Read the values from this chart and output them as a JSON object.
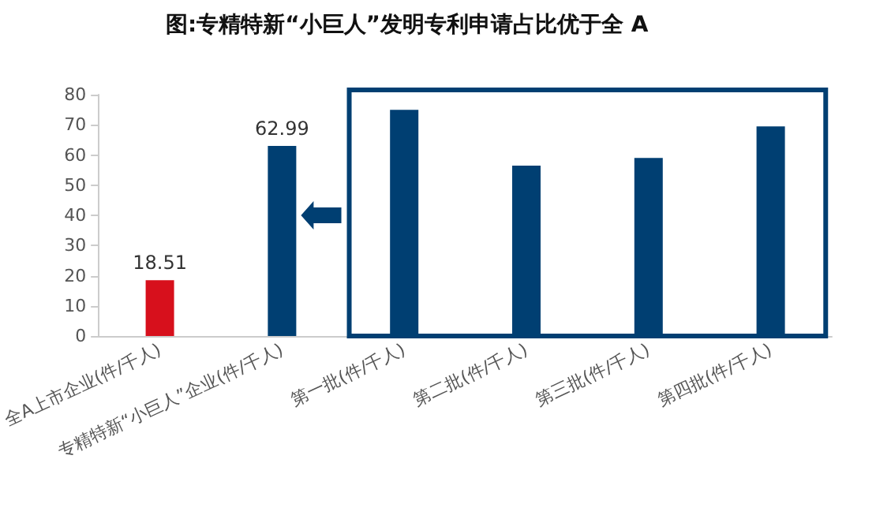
{
  "chart_data": {
    "type": "bar",
    "title": "图:专精特新“小巨人”发明专利申请占比优于全 A",
    "categories": [
      "全A上市企业(件/千人)",
      "专精特新“小巨人”企业(件/千人)",
      "第一批(件/千人)",
      "第二批(件/千人)",
      "第三批(件/千人)",
      "第四批(件/千人)"
    ],
    "values": [
      18.51,
      62.99,
      75,
      56.5,
      59,
      69.5
    ],
    "colors": [
      "#d7101c",
      "#003f72",
      "#003f72",
      "#003f72",
      "#003f72",
      "#003f72"
    ],
    "value_labels": [
      "18.51",
      "62.99",
      null,
      null,
      null,
      null
    ],
    "ylim": [
      0,
      80
    ],
    "yticks": [
      0,
      10,
      20,
      30,
      40,
      50,
      60,
      70,
      80
    ],
    "grid": false
  }
}
